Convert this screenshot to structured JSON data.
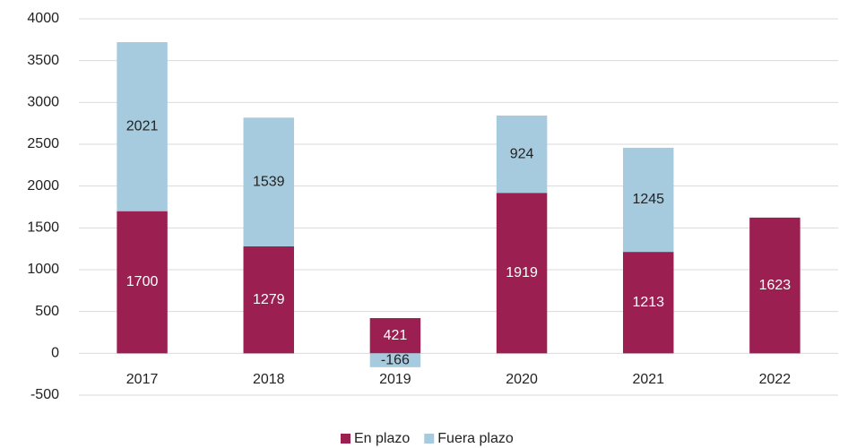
{
  "chart_data": {
    "type": "stacked_bar",
    "categories": [
      "2017",
      "2018",
      "2019",
      "2020",
      "2021",
      "2022"
    ],
    "series": [
      {
        "name": "En plazo",
        "color": "#9b1f50",
        "values": [
          1700,
          1279,
          421,
          1919,
          1213,
          1623
        ]
      },
      {
        "name": "Fuera plazo",
        "color": "#a6cbdf",
        "values": [
          2021,
          1539,
          -166,
          924,
          1245,
          null
        ]
      }
    ],
    "ylim": [
      -500,
      4000
    ],
    "yticks": [
      -500,
      0,
      500,
      1000,
      1500,
      2000,
      2500,
      3000,
      3500,
      4000
    ],
    "grid": true,
    "legend": "bottom"
  }
}
